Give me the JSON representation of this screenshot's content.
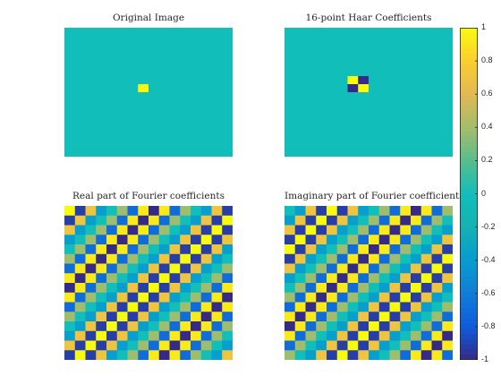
{
  "chart_data": [
    {
      "type": "heatmap",
      "title": "Original Image",
      "grid_size": [
        16,
        16
      ],
      "background_value": 0,
      "nonzero_cells": [
        {
          "row": 7,
          "col": 7,
          "value": 1
        }
      ]
    },
    {
      "type": "heatmap",
      "title": "16-point Haar Coefficients",
      "grid_size": [
        16,
        16
      ],
      "background_value": 0,
      "nonzero_cells": [
        {
          "row": 6,
          "col": 6,
          "value": 1
        },
        {
          "row": 6,
          "col": 7,
          "value": -1
        },
        {
          "row": 7,
          "col": 6,
          "value": -1
        },
        {
          "row": 7,
          "col": 7,
          "value": 1
        }
      ]
    },
    {
      "type": "heatmap",
      "title": "Real part of Fourier coefficients",
      "grid_size": [
        16,
        16
      ],
      "pattern": "real(exp(-i*2*pi*7*(k+l)/16)), alternating checkerboard"
    },
    {
      "type": "heatmap",
      "title": "Imaginary part of Fourier coefficients",
      "grid_size": [
        16,
        16
      ],
      "pattern": "imag(exp(-i*2*pi*7*(k+l)/16)), alternating checkerboard"
    }
  ],
  "colorbar": {
    "colormap": "parula",
    "range": [
      -1,
      1
    ],
    "tick_labels": [
      "1",
      "0.8",
      "0.6",
      "0.4",
      "0.2",
      "0",
      "-0.2",
      "-0.4",
      "-0.6",
      "-0.8",
      "-1"
    ]
  }
}
